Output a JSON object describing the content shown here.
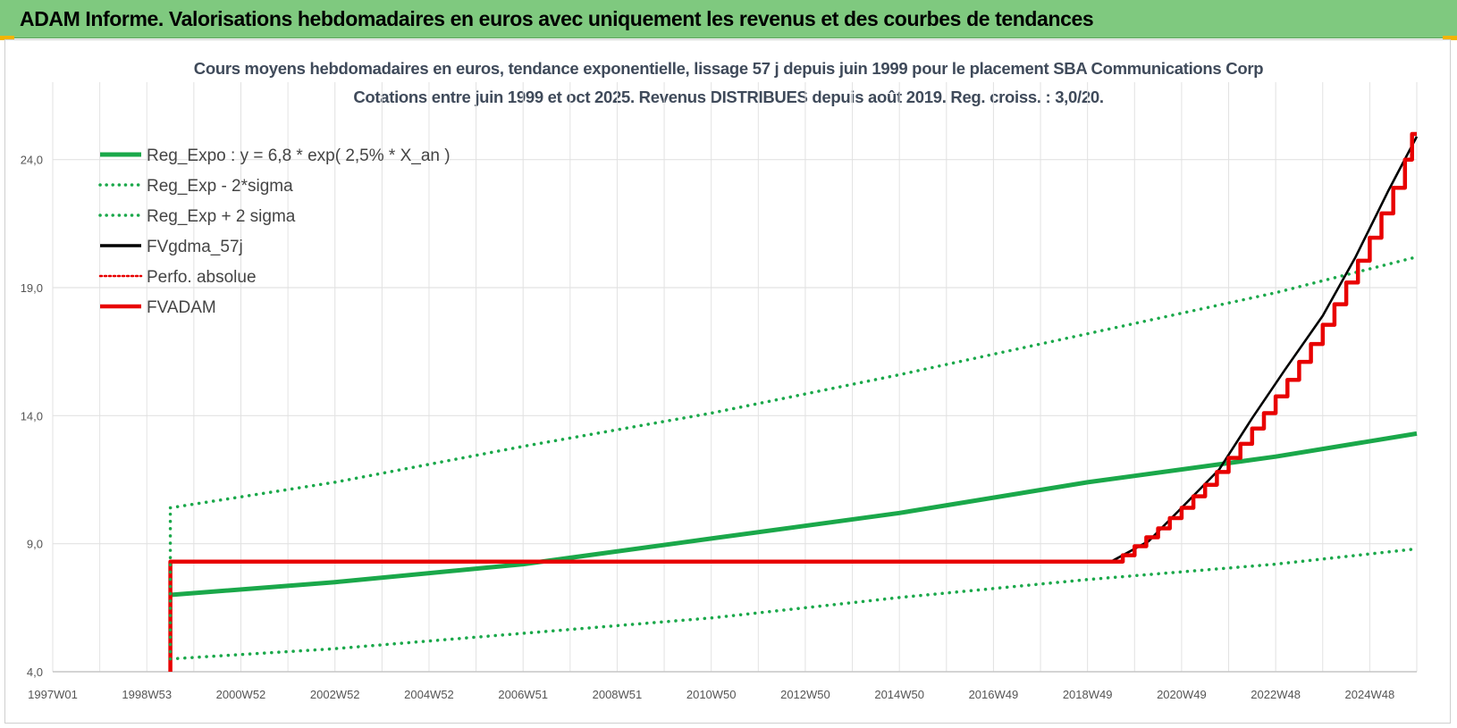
{
  "header": {
    "title": "ADAM Informe. Valorisations hebdomadaires en euros avec uniquement les revenus et des courbes de tendances"
  },
  "colors": {
    "banner": "#7fc97f",
    "green": "#1aa84a",
    "red": "#e80000",
    "black": "#000000",
    "grid": "#e2e2e2"
  },
  "chart_data": {
    "type": "line",
    "title": "Cours moyens hebdomadaires en euros, tendance exponentielle, lissage 57 j depuis juin 1999 pour le placement SBA Communications Corp",
    "subtitle": "Cotations entre juin 1999 et oct 2025. Revenus DISTRIBUES depuis août 2019. Reg. croiss. : 3,0/20.",
    "x_ticks": [
      {
        "label": "1997W01",
        "year": 1997.0
      },
      {
        "label": "1998W53",
        "year": 1999.0
      },
      {
        "label": "2000W52",
        "year": 2001.0
      },
      {
        "label": "2002W52",
        "year": 2003.0
      },
      {
        "label": "2004W52",
        "year": 2005.0
      },
      {
        "label": "2006W51",
        "year": 2007.0
      },
      {
        "label": "2008W51",
        "year": 2009.0
      },
      {
        "label": "2010W50",
        "year": 2011.0
      },
      {
        "label": "2012W50",
        "year": 2013.0
      },
      {
        "label": "2014W50",
        "year": 2015.0
      },
      {
        "label": "2016W49",
        "year": 2017.0
      },
      {
        "label": "2018W49",
        "year": 2019.0
      },
      {
        "label": "2020W49",
        "year": 2021.0
      },
      {
        "label": "2022W48",
        "year": 2023.0
      },
      {
        "label": "2024W48",
        "year": 2025.0
      }
    ],
    "xlim": [
      1997.0,
      2026.0
    ],
    "y_ticks": [
      "4,0",
      "9,0",
      "14,0",
      "19,0",
      "24,0"
    ],
    "ylim": [
      4.0,
      25.0
    ],
    "legend": [
      "Reg_Expo : y = 6,8 * exp( 2,5% *  X_an )",
      "Reg_Exp - 2*sigma",
      "Reg_Exp + 2 sigma",
      "FVgdma_57j",
      "Perfo. absolue",
      "FVADAM"
    ],
    "legend_position": "top-left",
    "series": [
      {
        "name": "Reg_Expo : y = 6,8 * exp( 2,5% *  X_an )",
        "style": "solid-thick",
        "color": "#1aa84a",
        "x": [
          1999.5,
          2003,
          2007,
          2011,
          2015,
          2019,
          2023,
          2026
        ],
        "y": [
          7.0,
          7.5,
          8.2,
          9.2,
          10.2,
          11.4,
          12.4,
          13.3
        ]
      },
      {
        "name": "Reg_Exp - 2*sigma",
        "style": "dotted",
        "color": "#1aa84a",
        "x": [
          1999.5,
          2003,
          2007,
          2011,
          2015,
          2019,
          2023,
          2026
        ],
        "y": [
          4.5,
          4.9,
          5.5,
          6.1,
          6.9,
          7.6,
          8.2,
          8.8
        ]
      },
      {
        "name": "Reg_Exp + 2 sigma",
        "style": "dotted",
        "color": "#1aa84a",
        "x": [
          1999.5,
          2003,
          2007,
          2011,
          2015,
          2019,
          2023,
          2026
        ],
        "y": [
          10.4,
          11.4,
          12.8,
          14.1,
          15.6,
          17.2,
          18.8,
          20.2
        ]
      },
      {
        "name": "FVgdma_57j",
        "style": "solid",
        "color": "#000000",
        "x": [
          1999.5,
          2019.5,
          2020.3,
          2021.0,
          2021.8,
          2022.5,
          2023.2,
          2024.0,
          2024.7,
          2025.4,
          2026.0
        ],
        "y": [
          8.3,
          8.3,
          9.1,
          10.4,
          11.9,
          13.9,
          15.8,
          17.9,
          20.2,
          22.8,
          24.9
        ]
      },
      {
        "name": "FVADAM",
        "style": "steps-thick",
        "color": "#e80000",
        "steps": [
          [
            1999.5,
            4.0
          ],
          [
            1999.5,
            8.3
          ],
          [
            2019.5,
            8.3
          ],
          [
            2019.75,
            8.55
          ],
          [
            2020.0,
            8.9
          ],
          [
            2020.25,
            9.25
          ],
          [
            2020.5,
            9.6
          ],
          [
            2020.75,
            10.0
          ],
          [
            2021.0,
            10.4
          ],
          [
            2021.25,
            10.85
          ],
          [
            2021.5,
            11.3
          ],
          [
            2021.75,
            11.8
          ],
          [
            2022.0,
            12.35
          ],
          [
            2022.25,
            12.9
          ],
          [
            2022.5,
            13.5
          ],
          [
            2022.75,
            14.1
          ],
          [
            2023.0,
            14.75
          ],
          [
            2023.25,
            15.4
          ],
          [
            2023.5,
            16.1
          ],
          [
            2023.75,
            16.8
          ],
          [
            2024.0,
            17.55
          ],
          [
            2024.25,
            18.35
          ],
          [
            2024.5,
            19.2
          ],
          [
            2024.75,
            20.05
          ],
          [
            2025.0,
            20.95
          ],
          [
            2025.25,
            21.9
          ],
          [
            2025.5,
            22.9
          ],
          [
            2025.75,
            24.0
          ],
          [
            2025.9,
            25.0
          ],
          [
            2026.0,
            25.0
          ]
        ]
      }
    ]
  }
}
